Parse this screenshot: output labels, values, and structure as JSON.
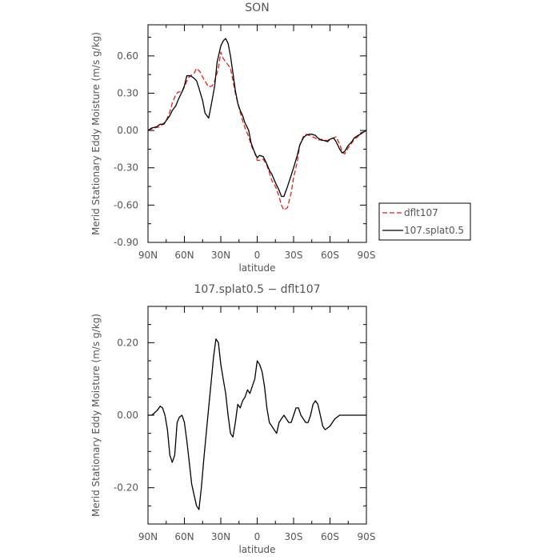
{
  "chart_data": [
    {
      "type": "line",
      "title": "SON",
      "xlabel": "latitude",
      "ylabel": "Merid Stationary Eddy Moisture (m/s g/kg)",
      "xlim": [
        90,
        -90
      ],
      "ylim": [
        -0.9,
        0.85
      ],
      "x_ticks": [
        90,
        60,
        30,
        0,
        -30,
        -60,
        -90
      ],
      "x_tick_labels": [
        "90N",
        "60N",
        "30N",
        "0",
        "30S",
        "60S",
        "90S"
      ],
      "y_ticks": [
        -0.9,
        -0.6,
        -0.3,
        0.0,
        0.3,
        0.6
      ],
      "y_tick_labels": [
        "-0.90",
        "-0.60",
        "-0.30",
        "0.00",
        "0.30",
        "0.60"
      ],
      "legend_position": "right",
      "series": [
        {
          "name": "dflt107",
          "color": "#e0201b",
          "dash": "6,3",
          "x": [
            90,
            85,
            80,
            75,
            72,
            70,
            67,
            65,
            62,
            60,
            57,
            55,
            52,
            50,
            47,
            45,
            42,
            40,
            37,
            35,
            32,
            30,
            28,
            25,
            22,
            20,
            18,
            15,
            12,
            10,
            7,
            5,
            2,
            0,
            -2,
            -5,
            -8,
            -10,
            -12,
            -15,
            -18,
            -20,
            -22,
            -25,
            -28,
            -30,
            -33,
            -35,
            -38,
            -40,
            -43,
            -45,
            -48,
            -50,
            -53,
            -55,
            -58,
            -60,
            -63,
            -65,
            -68,
            -70,
            -72,
            -75,
            -78,
            -80,
            -83,
            -85,
            -88,
            -90
          ],
          "y": [
            0.0,
            0.02,
            0.03,
            0.08,
            0.15,
            0.22,
            0.29,
            0.31,
            0.31,
            0.35,
            0.42,
            0.44,
            0.46,
            0.5,
            0.47,
            0.43,
            0.38,
            0.35,
            0.36,
            0.4,
            0.5,
            0.63,
            0.58,
            0.54,
            0.5,
            0.4,
            0.3,
            0.18,
            0.08,
            0.02,
            -0.05,
            -0.12,
            -0.18,
            -0.24,
            -0.24,
            -0.23,
            -0.28,
            -0.34,
            -0.4,
            -0.45,
            -0.53,
            -0.6,
            -0.64,
            -0.62,
            -0.5,
            -0.38,
            -0.25,
            -0.12,
            -0.05,
            -0.03,
            -0.04,
            -0.05,
            -0.06,
            -0.08,
            -0.07,
            -0.08,
            -0.08,
            -0.07,
            -0.06,
            -0.05,
            -0.11,
            -0.17,
            -0.19,
            -0.14,
            -0.1,
            -0.07,
            -0.05,
            -0.02,
            -0.01,
            0.0
          ]
        },
        {
          "name": "107.splat0.5",
          "color": "#000000",
          "dash": "",
          "x": [
            90,
            87,
            83,
            80,
            77,
            75,
            72,
            70,
            67,
            65,
            62,
            60,
            58,
            55,
            52,
            50,
            48,
            45,
            43,
            40,
            38,
            35,
            33,
            30,
            28,
            26,
            24,
            22,
            20,
            18,
            16,
            14,
            12,
            10,
            7,
            5,
            2,
            0,
            -2,
            -5,
            -8,
            -10,
            -12,
            -15,
            -18,
            -20,
            -22,
            -25,
            -28,
            -30,
            -33,
            -35,
            -38,
            -40,
            -43,
            -45,
            -48,
            -50,
            -53,
            -55,
            -58,
            -60,
            -63,
            -65,
            -68,
            -70,
            -72,
            -75,
            -78,
            -80,
            -83,
            -85,
            -88,
            -90
          ],
          "y": [
            0.0,
            0.02,
            0.03,
            0.05,
            0.05,
            0.08,
            0.12,
            0.16,
            0.2,
            0.25,
            0.31,
            0.36,
            0.44,
            0.44,
            0.42,
            0.4,
            0.34,
            0.24,
            0.14,
            0.1,
            0.2,
            0.36,
            0.55,
            0.68,
            0.72,
            0.74,
            0.7,
            0.6,
            0.46,
            0.32,
            0.22,
            0.16,
            0.12,
            0.06,
            0.0,
            -0.1,
            -0.18,
            -0.22,
            -0.2,
            -0.21,
            -0.27,
            -0.32,
            -0.35,
            -0.42,
            -0.48,
            -0.53,
            -0.53,
            -0.45,
            -0.36,
            -0.3,
            -0.2,
            -0.12,
            -0.06,
            -0.04,
            -0.03,
            -0.03,
            -0.04,
            -0.06,
            -0.08,
            -0.08,
            -0.09,
            -0.07,
            -0.06,
            -0.09,
            -0.15,
            -0.18,
            -0.17,
            -0.12,
            -0.09,
            -0.06,
            -0.04,
            -0.03,
            -0.01,
            0.0
          ]
        }
      ]
    },
    {
      "type": "line",
      "title": "107.splat0.5 − dflt107",
      "xlabel": "latitude",
      "ylabel": "Merid Stationary Eddy Moisture (m/s g/kg)",
      "xlim": [
        90,
        -90
      ],
      "ylim": [
        -0.3,
        0.3
      ],
      "x_ticks": [
        90,
        60,
        30,
        0,
        -30,
        -60,
        -90
      ],
      "x_tick_labels": [
        "90N",
        "60N",
        "30N",
        "0",
        "30S",
        "60S",
        "90S"
      ],
      "y_ticks": [
        -0.2,
        0.0,
        0.2
      ],
      "y_tick_labels": [
        "-0.20",
        "0.00",
        "0.20"
      ],
      "series": [
        {
          "name": "",
          "color": "#000000",
          "dash": "",
          "x": [
            90,
            87,
            85,
            82,
            80,
            78,
            76,
            74,
            72,
            70,
            68,
            66,
            64,
            62,
            60,
            58,
            56,
            54,
            52,
            50,
            48,
            46,
            44,
            42,
            40,
            38,
            36,
            34,
            32,
            30,
            28,
            26,
            24,
            22,
            20,
            18,
            16,
            14,
            12,
            10,
            8,
            6,
            4,
            2,
            0,
            -2,
            -4,
            -6,
            -8,
            -10,
            -12,
            -14,
            -16,
            -18,
            -20,
            -22,
            -24,
            -26,
            -28,
            -30,
            -32,
            -34,
            -36,
            -38,
            -40,
            -42,
            -44,
            -46,
            -48,
            -50,
            -52,
            -54,
            -56,
            -58,
            -60,
            -62,
            -64,
            -66,
            -68,
            -70,
            -72,
            -74,
            -76,
            -78,
            -80,
            -82,
            -84,
            -86,
            -88,
            -90
          ],
          "y": [
            0.0,
            0.0,
            0.005,
            0.015,
            0.025,
            0.02,
            0.0,
            -0.04,
            -0.11,
            -0.13,
            -0.11,
            -0.02,
            -0.005,
            0.0,
            -0.02,
            -0.07,
            -0.13,
            -0.19,
            -0.22,
            -0.25,
            -0.26,
            -0.2,
            -0.12,
            -0.05,
            0.02,
            0.09,
            0.16,
            0.21,
            0.2,
            0.14,
            0.1,
            0.06,
            0.0,
            -0.05,
            -0.06,
            -0.02,
            0.03,
            0.02,
            0.04,
            0.05,
            0.07,
            0.06,
            0.08,
            0.1,
            0.15,
            0.14,
            0.12,
            0.08,
            0.02,
            -0.02,
            -0.03,
            -0.04,
            -0.05,
            -0.02,
            -0.01,
            0.0,
            -0.01,
            -0.02,
            -0.02,
            0.0,
            0.02,
            0.02,
            0.0,
            -0.01,
            -0.02,
            -0.02,
            0.0,
            0.03,
            0.04,
            0.03,
            0.0,
            -0.03,
            -0.04,
            -0.035,
            -0.03,
            -0.02,
            -0.01,
            -0.005,
            0.0,
            0.0,
            0.0,
            0.0,
            0.0,
            0.0,
            0.0,
            0.0,
            0.0,
            0.0,
            0.0,
            0.0
          ]
        }
      ]
    }
  ]
}
